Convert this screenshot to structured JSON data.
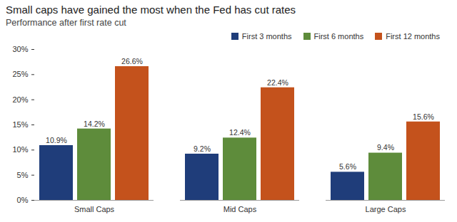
{
  "chart_data": {
    "type": "bar",
    "title": "Small caps have gained the most when the Fed has cut rates",
    "subtitle": "Performance after first rate cut",
    "categories": [
      "Small Caps",
      "Mid Caps",
      "Large Caps"
    ],
    "series": [
      {
        "name": "First 3 months",
        "color": "#1f3d7a",
        "values": [
          10.9,
          9.2,
          5.6
        ],
        "value_labels": [
          "10.9%",
          "9.2%",
          "5.6%"
        ]
      },
      {
        "name": "First 6 months",
        "color": "#5e8c3b",
        "values": [
          14.2,
          12.4,
          9.4
        ],
        "value_labels": [
          "14.2%",
          "12.4%",
          "9.4%"
        ]
      },
      {
        "name": "First 12 months",
        "color": "#c4521c",
        "values": [
          26.6,
          22.4,
          15.6
        ],
        "value_labels": [
          "26.6%",
          "22.4%",
          "15.6%"
        ]
      }
    ],
    "ylim": [
      0,
      30
    ],
    "yticks": [
      {
        "value": 0,
        "label": "0%"
      },
      {
        "value": 5,
        "label": "5%"
      },
      {
        "value": 10,
        "label": "10%"
      },
      {
        "value": 15,
        "label": "15%"
      },
      {
        "value": 20,
        "label": "20%"
      },
      {
        "value": 25,
        "label": "25%"
      },
      {
        "value": 30,
        "label": "30%"
      }
    ],
    "grid": false,
    "legend": "top right",
    "data_labels": true
  }
}
